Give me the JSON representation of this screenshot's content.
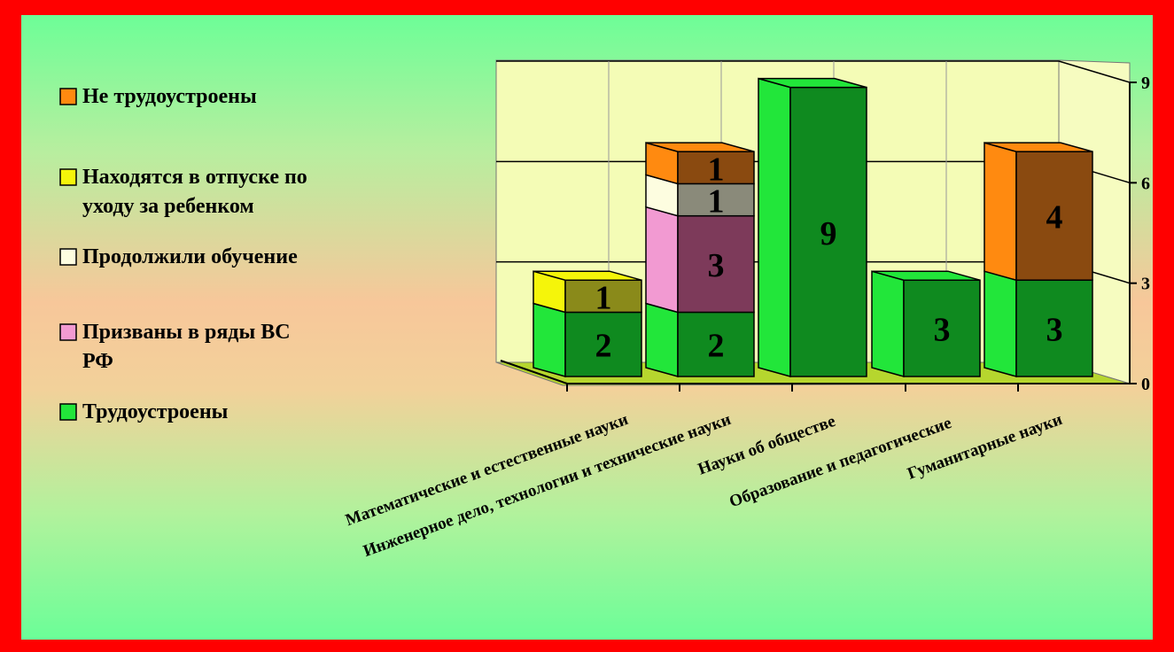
{
  "chart_data": {
    "type": "bar",
    "stacked": true,
    "three_d": true,
    "categories": [
      "Математические и естественные науки",
      "Инженерное дело, технологии и технические науки",
      "Науки об обществе",
      "Образование и педагогические",
      "Гуманитарные науки"
    ],
    "series": [
      {
        "name": "Трудоустроены",
        "values": [
          2,
          2,
          9,
          3,
          3
        ],
        "color": "#0f8a1f",
        "side": "#22e63a"
      },
      {
        "name": "Призваны в ряды ВС РФ",
        "values": [
          0,
          3,
          0,
          0,
          0
        ],
        "color": "#7d3a5a",
        "side": "#f29ad2"
      },
      {
        "name": "Продолжили обучение",
        "values": [
          0,
          1,
          0,
          0,
          0
        ],
        "color": "#8a8a7a",
        "side": "#fdfde0"
      },
      {
        "name": "Находятся в отпуске по уходу за ребенком",
        "values": [
          1,
          0,
          0,
          0,
          0
        ],
        "color": "#8a8a1a",
        "side": "#f5f50a"
      },
      {
        "name": "Не трудоустроены",
        "values": [
          0,
          1,
          0,
          0,
          4
        ],
        "color": "#8a4a10",
        "side": "#ff8a10"
      }
    ],
    "legend_order": [
      "Не трудоустроены",
      "Находятся в отпуске по уходу за ребенком",
      "Продолжили обучение",
      "Призваны в ряды ВС РФ",
      "Трудоустроены"
    ],
    "legend_display": [
      [
        "Не трудоустроены"
      ],
      [
        "Находятся в отпуске по",
        "уходу за ребенком"
      ],
      [
        "Продолжили обучение"
      ],
      [
        "Призваны в ряды ВС",
        "РФ"
      ],
      [
        "Трудоустроены"
      ]
    ],
    "y_ticks": [
      "0",
      "3",
      "6",
      "9"
    ],
    "ylim": [
      0,
      9
    ],
    "grid": true,
    "legend_position": "left"
  }
}
